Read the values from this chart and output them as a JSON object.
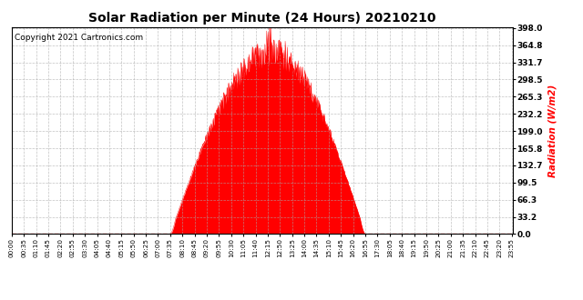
{
  "title": "Solar Radiation per Minute (24 Hours) 20210210",
  "ylabel": "Radiation (W/m2)",
  "ylabel_color": "#ff0000",
  "copyright_text": "Copyright 2021 Cartronics.com",
  "fill_color": "#ff0000",
  "line_color": "#ff0000",
  "background_color": "#ffffff",
  "grid_color": "#aaaaaa",
  "dashed_line_color": "#ff0000",
  "yticks": [
    0.0,
    33.2,
    66.3,
    99.5,
    132.7,
    165.8,
    199.0,
    232.2,
    265.3,
    298.5,
    331.7,
    364.8,
    398.0
  ],
  "ymax": 398.0,
  "ymin": 0.0,
  "total_minutes": 1440,
  "sunrise_minute": 455,
  "sunset_minute": 1015,
  "peak_minute": 745,
  "peak_value": 398.0
}
